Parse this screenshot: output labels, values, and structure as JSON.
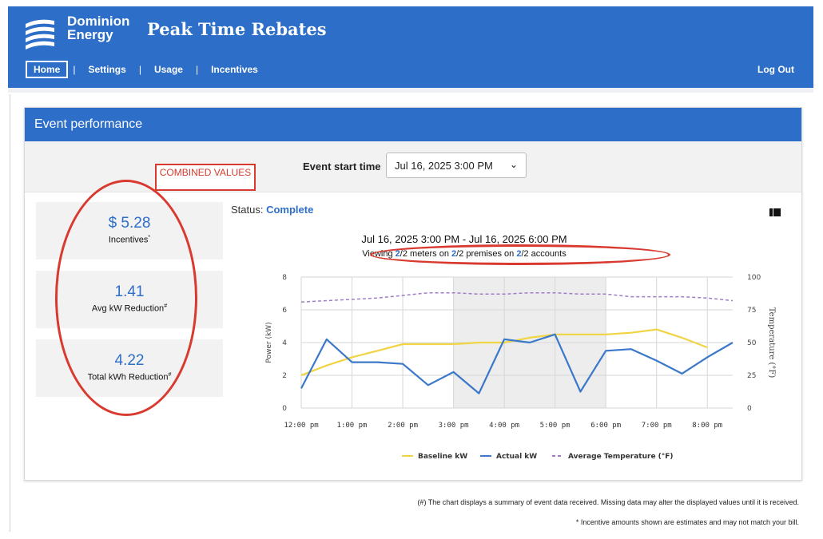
{
  "header": {
    "brand_line1": "Dominion",
    "brand_line2": "Energy",
    "title": "Peak Time Rebates",
    "nav": [
      "Home",
      "Settings",
      "Usage",
      "Incentives"
    ],
    "logout": "Log Out",
    "color": "#2d6ec8"
  },
  "panel": {
    "title": "Event performance",
    "start_label": "Event start time",
    "start_value": "Jul 16, 2025 3:00 PM",
    "annotation": "COMBINED VALUES"
  },
  "stats": [
    {
      "value": "$ 5.28",
      "label": "Incentives",
      "mark": "*"
    },
    {
      "value": "1.41",
      "label": "Avg kW Reduction",
      "mark": "#"
    },
    {
      "value": "4.22",
      "label": "Total kWh Reduction",
      "mark": "#"
    }
  ],
  "status": {
    "label": "Status:",
    "value": "Complete"
  },
  "chart_header": {
    "range": "Jul 16, 2025 3:00 PM - Jul 16, 2025 6:00 PM",
    "viewing": [
      "Viewing ",
      "2",
      "/2 meters on ",
      "2",
      "/2 premises on ",
      "2",
      "/2 accounts"
    ]
  },
  "chart_data": {
    "type": "line",
    "x": [
      "12:00 pm",
      "12:30 pm",
      "1:00 pm",
      "1:30 pm",
      "2:00 pm",
      "2:30 pm",
      "3:00 pm",
      "3:30 pm",
      "4:00 pm",
      "4:30 pm",
      "5:00 pm",
      "5:30 pm",
      "6:00 pm",
      "6:30 pm",
      "7:00 pm",
      "7:30 pm",
      "8:00 pm",
      "8:30 pm"
    ],
    "x_tick_labels": [
      "12:00 pm",
      "1:00 pm",
      "2:00 pm",
      "3:00 pm",
      "4:00 pm",
      "5:00 pm",
      "6:00 pm",
      "7:00 pm",
      "8:00 pm"
    ],
    "series": [
      {
        "name": "Baseline kW",
        "color": "#f0d443",
        "axis": "left",
        "values": [
          2.0,
          2.6,
          3.1,
          3.5,
          3.9,
          3.9,
          3.9,
          4.0,
          4.0,
          4.3,
          4.5,
          4.5,
          4.5,
          4.6,
          4.8,
          4.3,
          3.7,
          null
        ]
      },
      {
        "name": "Actual kW",
        "color": "#3b78c9",
        "axis": "left",
        "values": [
          1.2,
          4.2,
          2.8,
          2.8,
          2.7,
          1.4,
          2.2,
          0.9,
          4.2,
          4.0,
          4.5,
          1.0,
          3.5,
          3.6,
          2.9,
          2.1,
          3.1,
          4.0
        ]
      },
      {
        "name": "Average Temperature (°F)",
        "color": "#a07cc8",
        "axis": "right",
        "dashed": true,
        "values": [
          81,
          82,
          83,
          84,
          86,
          88,
          88,
          87,
          87,
          88,
          88,
          87,
          87,
          85,
          85,
          85,
          84,
          82
        ]
      }
    ],
    "shaded_range": [
      "3:00 pm",
      "6:00 pm"
    ],
    "ylabel": "Power (kW)",
    "y2label": "Temperature (°F)",
    "ylim": [
      0,
      8
    ],
    "yticks": [
      0,
      2,
      4,
      6,
      8
    ],
    "y2lim": [
      0,
      100
    ],
    "y2ticks": [
      0,
      25,
      50,
      75,
      100
    ],
    "grid": true,
    "legend": "bottom"
  },
  "footnotes": {
    "hash": "(#) The chart displays a summary of event data received. Missing data may alter the displayed values until it is received.",
    "star": "* Incentive amounts shown are estimates and may not match your bill."
  },
  "colors": {
    "accent": "#2d6ec8",
    "annotation": "#d93a2f"
  }
}
